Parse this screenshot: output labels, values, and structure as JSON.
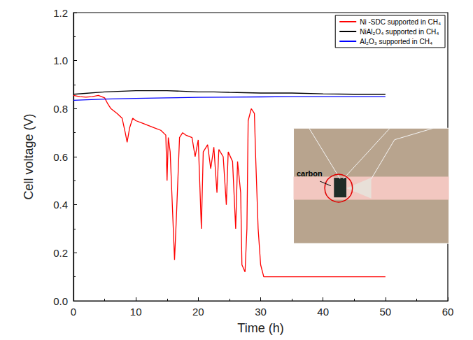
{
  "chart_data": {
    "type": "line",
    "x_label": "Time (h)",
    "y_label": "Cell voltage (V)",
    "xlim": [
      0,
      60
    ],
    "xticks": [
      0,
      10,
      20,
      30,
      40,
      50,
      60
    ],
    "ylim": [
      0,
      1.2
    ],
    "yticks": [
      {
        "value": 0,
        "label": "0.0"
      },
      0.2,
      0.4,
      0.6,
      0.8,
      {
        "value": 1,
        "label": "1.0"
      },
      1.2
    ],
    "grid": false,
    "legend": "top-right",
    "annotation": "carbon",
    "series": [
      {
        "name": "Ni -SDC supported in CH₄",
        "color": "#ff0000",
        "x": [
          0,
          1,
          2,
          3,
          4,
          5,
          5.5,
          6,
          7,
          7.8,
          8.3,
          8.6,
          9,
          9.5,
          10,
          11,
          12,
          13,
          14,
          14.8,
          15,
          15.2,
          15.5,
          16,
          16.2,
          16.5,
          17,
          17.5,
          18,
          19,
          19.5,
          20,
          20.5,
          20.8,
          21.5,
          22,
          22.5,
          23,
          23.3,
          24,
          24.5,
          24.8,
          25.5,
          26,
          26.3,
          26.8,
          27,
          27.5,
          27.8,
          28,
          28.5,
          29,
          29.2,
          29.6,
          30,
          30.5,
          35,
          40,
          45,
          50
        ],
        "values": [
          0.855,
          0.85,
          0.848,
          0.85,
          0.855,
          0.845,
          0.82,
          0.8,
          0.78,
          0.76,
          0.7,
          0.66,
          0.72,
          0.76,
          0.75,
          0.74,
          0.73,
          0.72,
          0.71,
          0.69,
          0.5,
          0.68,
          0.62,
          0.3,
          0.17,
          0.35,
          0.68,
          0.7,
          0.69,
          0.68,
          0.6,
          0.67,
          0.3,
          0.62,
          0.65,
          0.55,
          0.64,
          0.45,
          0.63,
          0.6,
          0.4,
          0.62,
          0.58,
          0.3,
          0.58,
          0.45,
          0.15,
          0.12,
          0.3,
          0.75,
          0.8,
          0.78,
          0.6,
          0.3,
          0.15,
          0.1,
          0.1,
          0.1,
          0.1,
          0.1
        ]
      },
      {
        "name": "NiAl₂O₄ supported in CH₄",
        "color": "#000000",
        "x": [
          0,
          5,
          10,
          15,
          20,
          22.5,
          25,
          30,
          35,
          40,
          45,
          50
        ],
        "values": [
          0.86,
          0.87,
          0.875,
          0.875,
          0.87,
          0.87,
          0.868,
          0.865,
          0.865,
          0.862,
          0.86,
          0.86
        ]
      },
      {
        "name": "Al₂O₃ supported in CH₄",
        "color": "#0000ff",
        "x": [
          0,
          5,
          10,
          15,
          20,
          25,
          30,
          35,
          40,
          45,
          50
        ],
        "values": [
          0.835,
          0.84,
          0.843,
          0.845,
          0.847,
          0.848,
          0.849,
          0.85,
          0.85,
          0.85,
          0.85
        ]
      }
    ]
  }
}
